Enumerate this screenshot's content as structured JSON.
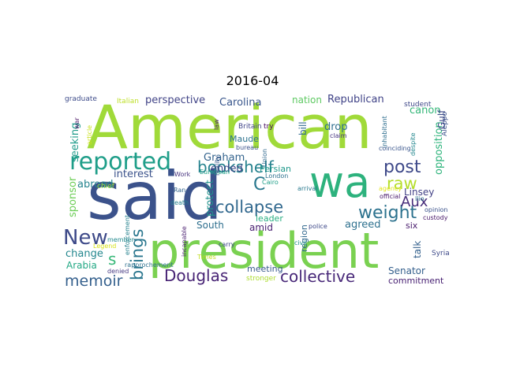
{
  "chart_data": {
    "type": "wordcloud",
    "title": "2016-04",
    "words": [
      {
        "text": "American",
        "color": "#a0da39"
      },
      {
        "text": "said",
        "color": "#3b528b"
      },
      {
        "text": "president",
        "color": "#7ad151"
      },
      {
        "text": "wa",
        "color": "#2db27d"
      },
      {
        "text": "reported",
        "color": "#1f9e89"
      },
      {
        "text": "New",
        "color": "#3e4a89"
      },
      {
        "text": "bookshelf",
        "color": "#26828e"
      },
      {
        "text": "collapse",
        "color": "#31688e"
      },
      {
        "text": "weight",
        "color": "#2c728e"
      },
      {
        "text": "collective",
        "color": "#482878"
      },
      {
        "text": "Douglas",
        "color": "#482475"
      },
      {
        "text": "post",
        "color": "#3e4989"
      },
      {
        "text": "raw",
        "color": "#b5de2b"
      },
      {
        "text": "Aux",
        "color": "#472d7b"
      },
      {
        "text": "memoir",
        "color": "#35608d"
      },
      {
        "text": "brings",
        "color": "#2a768e"
      },
      {
        "text": "s",
        "color": "#37b878"
      },
      {
        "text": "C",
        "color": "#2a788e"
      },
      {
        "text": "Carolina",
        "color": "#39568c"
      },
      {
        "text": "Republican",
        "color": "#404387"
      },
      {
        "text": "perspective",
        "color": "#414487"
      },
      {
        "text": "nation",
        "color": "#5ec962"
      },
      {
        "text": "opposition",
        "color": "#2fb47c"
      },
      {
        "text": "Linsey",
        "color": "#424186"
      },
      {
        "text": "canon",
        "color": "#35b779"
      },
      {
        "text": "Graham",
        "color": "#33638d"
      },
      {
        "text": "ended",
        "color": "#3f4788"
      },
      {
        "text": "interest",
        "color": "#3b528b"
      },
      {
        "text": "Persian",
        "color": "#1f988b"
      },
      {
        "text": "drop",
        "color": "#2e6e8e"
      },
      {
        "text": "Maude",
        "color": "#2c728e"
      },
      {
        "text": "bill",
        "color": "#31688e"
      },
      {
        "text": "protect",
        "color": "#21918c"
      },
      {
        "text": "seeking",
        "color": "#1e9b8a"
      },
      {
        "text": "abroad",
        "color": "#25848e"
      },
      {
        "text": "sponsor",
        "color": "#6ece58"
      },
      {
        "text": "change",
        "color": "#24878e"
      },
      {
        "text": "Arabia",
        "color": "#22a884"
      },
      {
        "text": "South",
        "color": "#2e6f8e"
      },
      {
        "text": "amid",
        "color": "#482071"
      },
      {
        "text": "leader",
        "color": "#27ad81"
      },
      {
        "text": "agreed",
        "color": "#2d708e"
      },
      {
        "text": "six",
        "color": "#481a6c"
      },
      {
        "text": "region",
        "color": "#31688e"
      },
      {
        "text": "talk",
        "color": "#34618d"
      },
      {
        "text": "Senator",
        "color": "#35608d"
      },
      {
        "text": "commitment",
        "color": "#482173"
      },
      {
        "text": "meeting",
        "color": "#38598c"
      },
      {
        "text": "stronger",
        "color": "#addc30"
      },
      {
        "text": "Gulf",
        "color": "#3e4a89"
      },
      {
        "text": "student",
        "color": "#3f4889"
      },
      {
        "text": "Aleppo",
        "color": "#3b528b"
      },
      {
        "text": "graduate",
        "color": "#3e4c8a"
      },
      {
        "text": "Italian",
        "color": "#bddf26"
      },
      {
        "text": "war",
        "color": "#471063"
      },
      {
        "text": "article",
        "color": "#cae11f"
      },
      {
        "text": "chief",
        "color": "#a5db36"
      },
      {
        "text": "Britain",
        "color": "#404588"
      },
      {
        "text": "try",
        "color": "#46085c"
      },
      {
        "text": "claim",
        "color": "#46337f"
      },
      {
        "text": "bureau",
        "color": "#3b528b"
      },
      {
        "text": "Union",
        "color": "#31688e"
      },
      {
        "text": "law",
        "color": "#481b6d"
      },
      {
        "text": "European",
        "color": "#1fa088"
      },
      {
        "text": "Work",
        "color": "#46327e"
      },
      {
        "text": "Ran",
        "color": "#33638d"
      },
      {
        "text": "death",
        "color": "#26828e"
      },
      {
        "text": "Cairo",
        "color": "#1f9f88"
      },
      {
        "text": "London",
        "color": "#2c718e"
      },
      {
        "text": "arrival",
        "color": "#29798e"
      },
      {
        "text": "agency",
        "color": "#e1e51c"
      },
      {
        "text": "official",
        "color": "#48186a"
      },
      {
        "text": "Ilio",
        "color": "#2c728e"
      },
      {
        "text": "opinion",
        "color": "#3b528b"
      },
      {
        "text": "custody",
        "color": "#481769"
      },
      {
        "text": "Syria",
        "color": "#3e4a89"
      },
      {
        "text": "inhabitant",
        "color": "#2e6e8e"
      },
      {
        "text": "coinciding",
        "color": "#39558c"
      },
      {
        "text": "despite",
        "color": "#24878e"
      },
      {
        "text": "police",
        "color": "#3e4989"
      },
      {
        "text": "civil",
        "color": "#20928c"
      },
      {
        "text": "carry",
        "color": "#3f4889"
      },
      {
        "text": "Times",
        "color": "#c2df23"
      },
      {
        "text": "reality",
        "color": "#38588c"
      },
      {
        "text": "incapable",
        "color": "#481d6f"
      },
      {
        "text": "rapprochement",
        "color": "#2d708e"
      },
      {
        "text": "denied",
        "color": "#453882"
      },
      {
        "text": "member",
        "color": "#23898e"
      },
      {
        "text": "Legend",
        "color": "#d8e219"
      },
      {
        "text": "enforcement",
        "color": "#26828e"
      }
    ]
  }
}
